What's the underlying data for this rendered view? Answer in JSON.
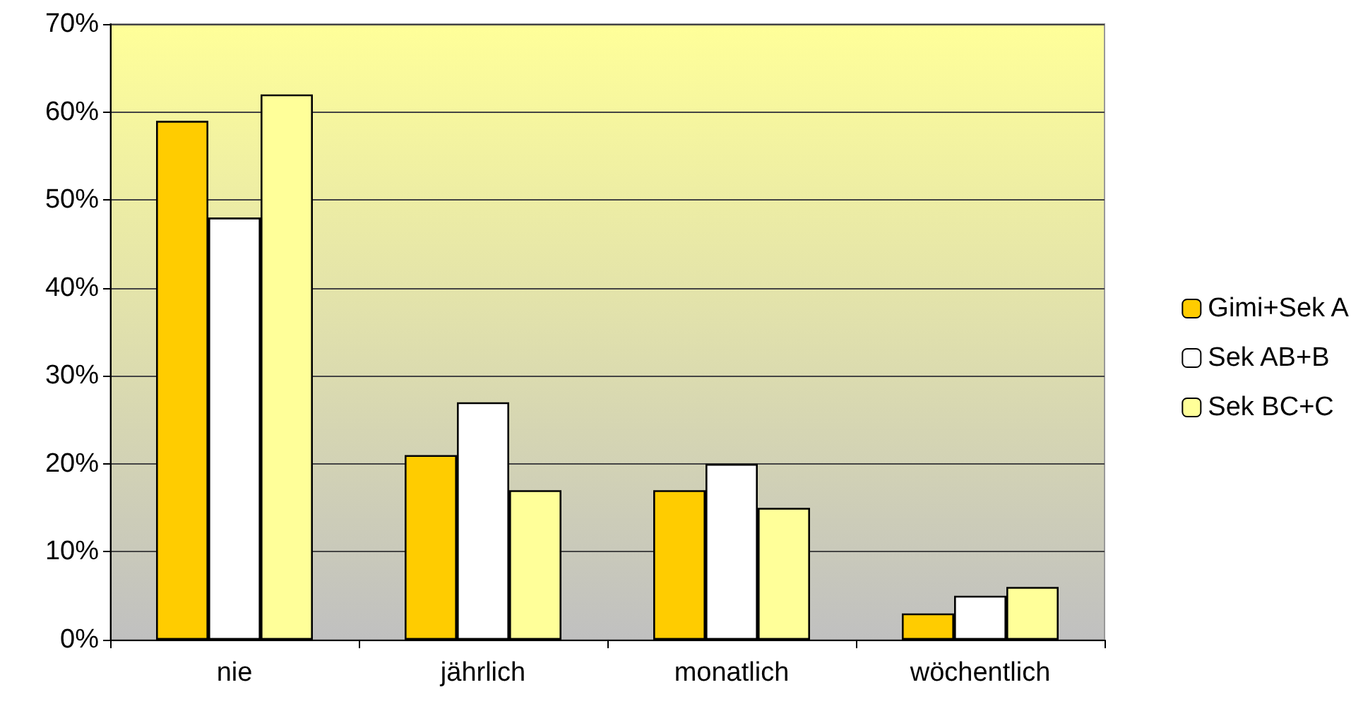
{
  "chart_data": {
    "type": "bar",
    "categories": [
      "nie",
      "jährlich",
      "monatlich",
      "wöchentlich"
    ],
    "series": [
      {
        "name": "Gimi+Sek A",
        "color": "#ffcc00",
        "values": [
          59,
          21,
          17,
          3
        ]
      },
      {
        "name": "Sek AB+B",
        "color": "#ffffff",
        "values": [
          48,
          27,
          20,
          5
        ]
      },
      {
        "name": "Sek BC+C",
        "color": "#ffff99",
        "values": [
          62,
          17,
          15,
          6
        ]
      }
    ],
    "ylim": [
      0,
      70
    ],
    "yticks": [
      {
        "value": 0,
        "label": "0%"
      },
      {
        "value": 10,
        "label": "10%"
      },
      {
        "value": 20,
        "label": "20%"
      },
      {
        "value": 30,
        "label": "30%"
      },
      {
        "value": 40,
        "label": "40%"
      },
      {
        "value": 50,
        "label": "50%"
      },
      {
        "value": 60,
        "label": "60%"
      },
      {
        "value": 70,
        "label": "70%"
      }
    ],
    "grid": "y",
    "legend": "right"
  }
}
